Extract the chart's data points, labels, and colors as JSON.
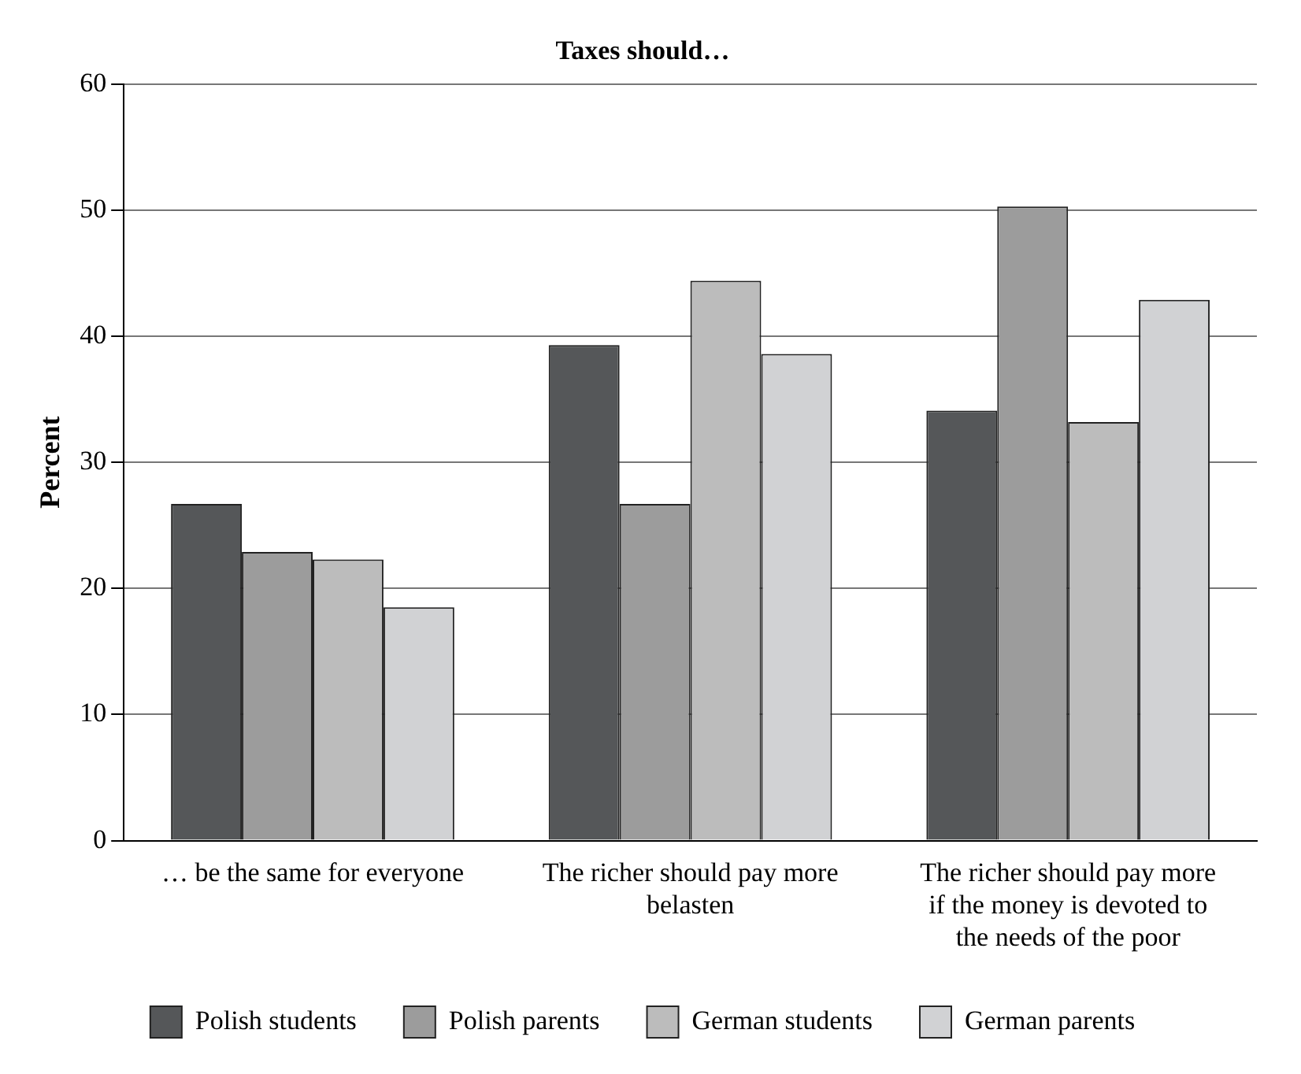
{
  "chart_data": {
    "type": "bar",
    "title": "Taxes should…",
    "ylabel": "Percent",
    "categories": [
      "… be the same for everyone",
      "The richer should pay more belasten",
      "The richer should pay more if the money is devoted to the needs of the poor"
    ],
    "series": [
      {
        "name": "Polish students",
        "color": "#555759",
        "values": [
          26.7,
          39.3,
          34.1
        ]
      },
      {
        "name": "Polish parents",
        "color": "#9c9c9c",
        "values": [
          22.9,
          26.7,
          50.3
        ]
      },
      {
        "name": "German students",
        "color": "#bcbcbc",
        "values": [
          22.3,
          44.4,
          33.2
        ]
      },
      {
        "name": "German parents",
        "color": "#d1d2d4",
        "values": [
          18.5,
          38.6,
          42.9
        ]
      }
    ],
    "ylim": [
      0,
      60
    ],
    "yticks": [
      0,
      10,
      20,
      30,
      40,
      50,
      60
    ],
    "grid": "y",
    "legend": "bottom"
  }
}
